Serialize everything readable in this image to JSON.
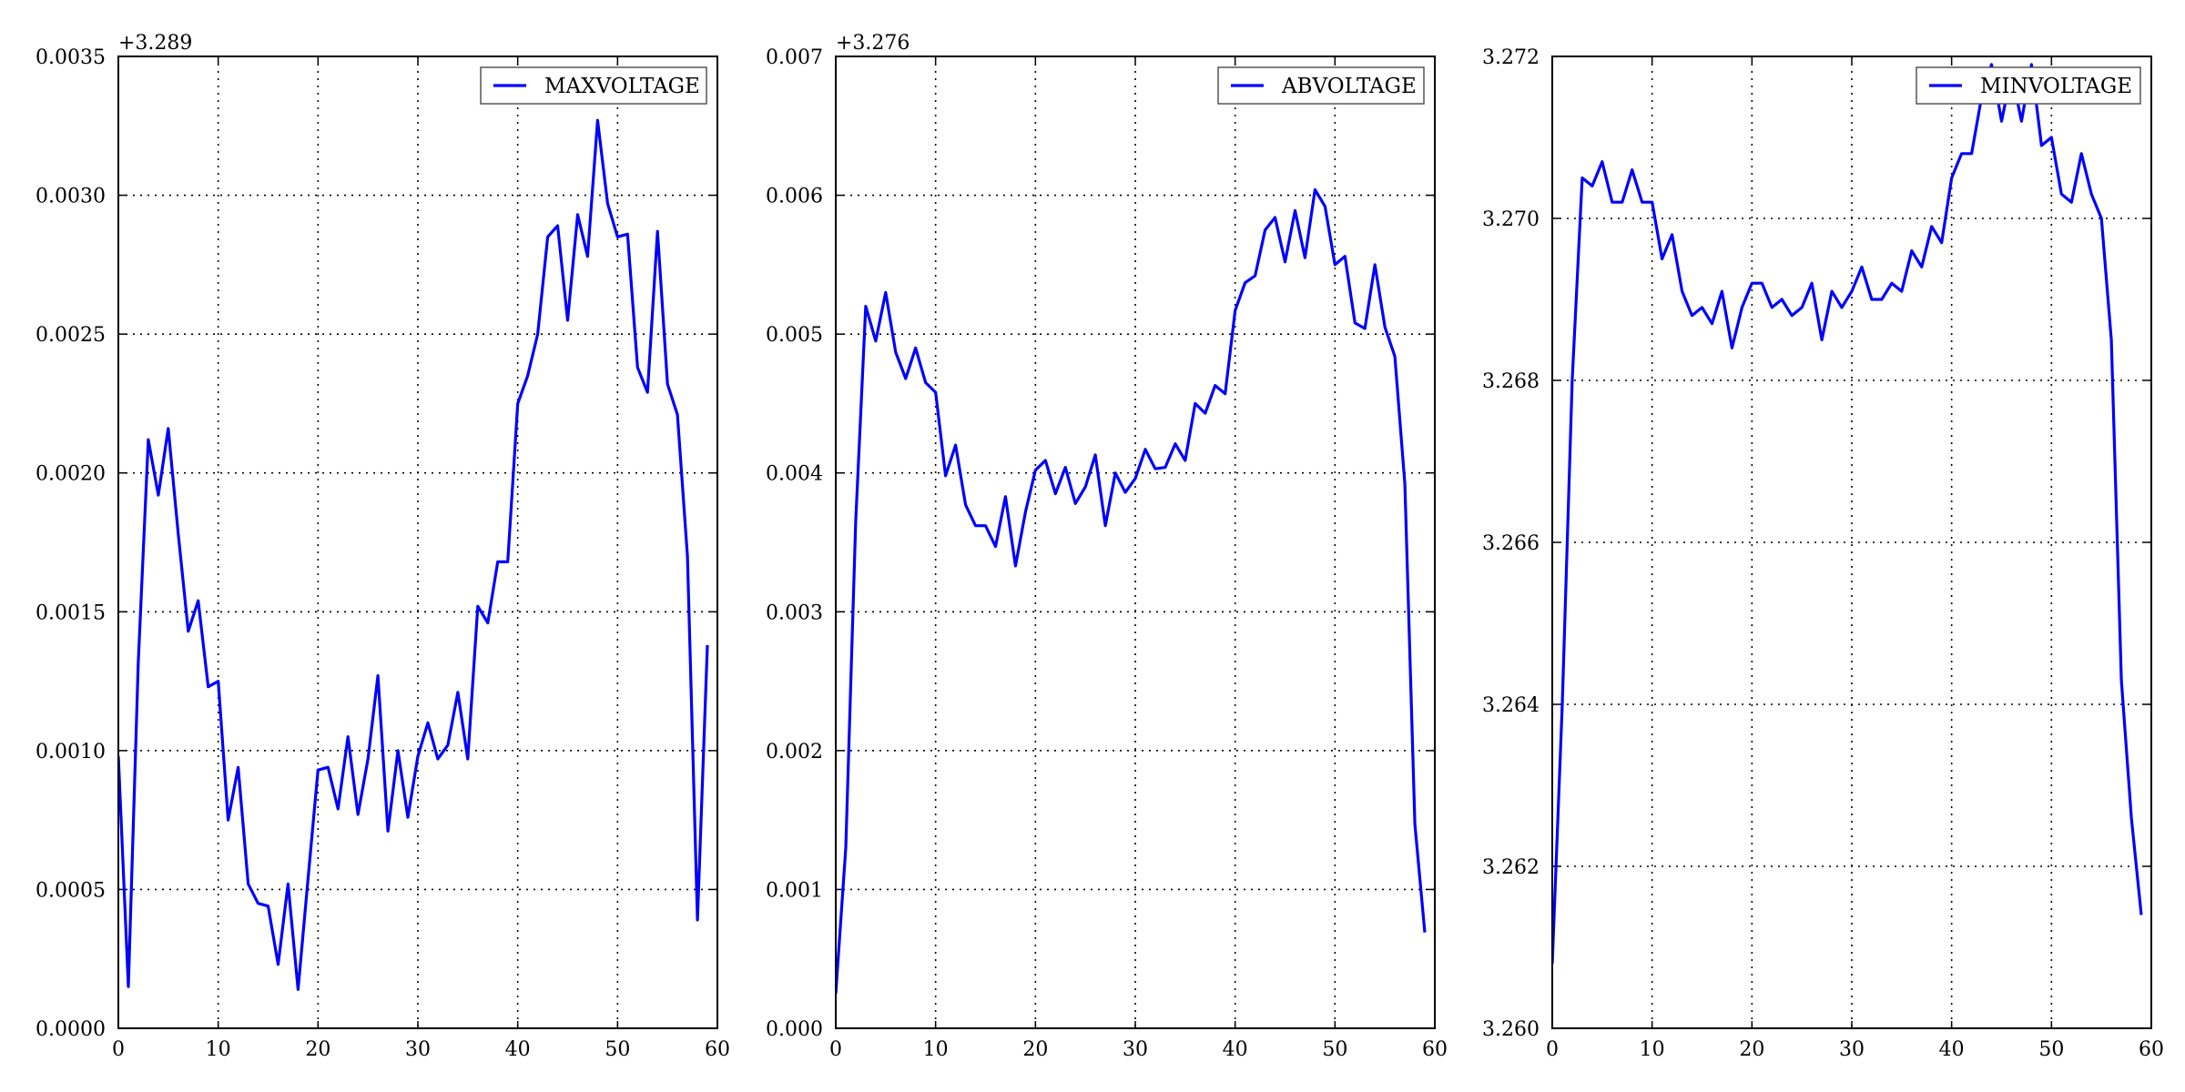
{
  "chart_data": [
    {
      "type": "line",
      "x_ticks": [
        "0",
        "10",
        "20",
        "30",
        "40",
        "50",
        "60"
      ],
      "y_ticks": [
        "0.0000",
        "0.0005",
        "0.0010",
        "0.0015",
        "0.0020",
        "0.0025",
        "0.0030",
        "0.0035"
      ],
      "y_offset_label": "+3.289",
      "xlim": [
        0,
        60
      ],
      "ylim": [
        0.0,
        0.0035
      ],
      "grid": true,
      "legend_position": "top-right",
      "series": [
        {
          "name": "MAXVOLTAGE",
          "color": "#0000ff",
          "x": [
            0,
            1,
            2,
            3,
            4,
            5,
            6,
            7,
            8,
            9,
            10,
            11,
            12,
            13,
            14,
            15,
            16,
            17,
            18,
            19,
            20,
            21,
            22,
            23,
            24,
            25,
            26,
            27,
            28,
            29,
            30,
            31,
            32,
            33,
            34,
            35,
            36,
            37,
            38,
            39,
            40,
            41,
            42,
            43,
            44,
            45,
            46,
            47,
            48,
            49,
            50,
            51,
            52,
            53,
            54,
            55,
            56,
            57,
            58,
            59
          ],
          "values": [
            0.00098,
            0.00015,
            0.00132,
            0.00212,
            0.00192,
            0.00216,
            0.00178,
            0.00143,
            0.00154,
            0.00123,
            0.00125,
            0.00075,
            0.00094,
            0.00052,
            0.00045,
            0.00044,
            0.00023,
            0.00052,
            0.00014,
            0.00054,
            0.00093,
            0.00094,
            0.00079,
            0.00105,
            0.00077,
            0.00097,
            0.00127,
            0.00071,
            0.001,
            0.00076,
            0.00098,
            0.0011,
            0.00097,
            0.00102,
            0.00121,
            0.00097,
            0.00152,
            0.00146,
            0.00168,
            0.00168,
            0.00225,
            0.00235,
            0.0025,
            0.00285,
            0.00289,
            0.00255,
            0.00293,
            0.00278,
            0.00327,
            0.00297,
            0.00285,
            0.00286,
            0.00238,
            0.00229,
            0.00287,
            0.00232,
            0.00221,
            0.0017,
            0.00039,
            0.00138
          ]
        }
      ]
    },
    {
      "type": "line",
      "x_ticks": [
        "0",
        "10",
        "20",
        "30",
        "40",
        "50",
        "60"
      ],
      "y_ticks": [
        "0.000",
        "0.001",
        "0.002",
        "0.003",
        "0.004",
        "0.005",
        "0.006",
        "0.007"
      ],
      "y_offset_label": "+3.276",
      "xlim": [
        0,
        60
      ],
      "ylim": [
        0.0,
        0.007
      ],
      "grid": true,
      "legend_position": "top-right",
      "series": [
        {
          "name": "ABVOLTAGE",
          "color": "#0000ff",
          "x": [
            0,
            1,
            2,
            3,
            4,
            5,
            6,
            7,
            8,
            9,
            10,
            11,
            12,
            13,
            14,
            15,
            16,
            17,
            18,
            19,
            20,
            21,
            22,
            23,
            24,
            25,
            26,
            27,
            28,
            29,
            30,
            31,
            32,
            33,
            34,
            35,
            36,
            37,
            38,
            39,
            40,
            41,
            42,
            43,
            44,
            45,
            46,
            47,
            48,
            49,
            50,
            51,
            52,
            53,
            54,
            55,
            56,
            57,
            58,
            59
          ],
          "values": [
            0.00025,
            0.0013,
            0.00365,
            0.0052,
            0.00495,
            0.0053,
            0.00487,
            0.00468,
            0.0049,
            0.00465,
            0.00458,
            0.00398,
            0.0042,
            0.00377,
            0.00362,
            0.00362,
            0.00347,
            0.00383,
            0.00333,
            0.00372,
            0.00402,
            0.00409,
            0.00385,
            0.00404,
            0.00378,
            0.0039,
            0.00413,
            0.00362,
            0.004,
            0.00386,
            0.00396,
            0.00417,
            0.00403,
            0.00404,
            0.00421,
            0.00409,
            0.0045,
            0.00443,
            0.00463,
            0.00457,
            0.00517,
            0.00537,
            0.00542,
            0.00575,
            0.00584,
            0.00552,
            0.00589,
            0.00555,
            0.00604,
            0.00592,
            0.0055,
            0.00556,
            0.00508,
            0.00504,
            0.0055,
            0.00505,
            0.00484,
            0.00392,
            0.00147,
            0.00069
          ]
        }
      ]
    },
    {
      "type": "line",
      "x_ticks": [
        "0",
        "10",
        "20",
        "30",
        "40",
        "50",
        "60"
      ],
      "y_ticks": [
        "3.260",
        "3.262",
        "3.264",
        "3.266",
        "3.268",
        "3.270",
        "3.272"
      ],
      "y_offset_label": "",
      "xlim": [
        0,
        60
      ],
      "ylim": [
        3.26,
        3.272
      ],
      "grid": true,
      "legend_position": "top-right",
      "series": [
        {
          "name": "MINVOLTAGE",
          "color": "#0000ff",
          "x": [
            0,
            1,
            2,
            3,
            4,
            5,
            6,
            7,
            8,
            9,
            10,
            11,
            12,
            13,
            14,
            15,
            16,
            17,
            18,
            19,
            20,
            21,
            22,
            23,
            24,
            25,
            26,
            27,
            28,
            29,
            30,
            31,
            32,
            33,
            34,
            35,
            36,
            37,
            38,
            39,
            40,
            41,
            42,
            43,
            44,
            45,
            46,
            47,
            48,
            49,
            50,
            51,
            52,
            53,
            54,
            55,
            56,
            57,
            58,
            59
          ],
          "values": [
            3.2608,
            3.264,
            3.268,
            3.2705,
            3.2704,
            3.2707,
            3.2702,
            3.2702,
            3.2706,
            3.2702,
            3.2702,
            3.2695,
            3.2698,
            3.2691,
            3.2688,
            3.2689,
            3.2687,
            3.2691,
            3.2684,
            3.2689,
            3.2692,
            3.2692,
            3.2689,
            3.269,
            3.2688,
            3.2689,
            3.2692,
            3.2685,
            3.2691,
            3.2689,
            3.2691,
            3.2694,
            3.269,
            3.269,
            3.2692,
            3.2691,
            3.2696,
            3.2694,
            3.2699,
            3.2697,
            3.2705,
            3.2708,
            3.2708,
            3.2715,
            3.2719,
            3.2712,
            3.2718,
            3.2712,
            3.2719,
            3.2709,
            3.271,
            3.2703,
            3.2702,
            3.2708,
            3.2703,
            3.27,
            3.2685,
            3.2643,
            3.2626,
            3.2614
          ]
        }
      ]
    }
  ]
}
